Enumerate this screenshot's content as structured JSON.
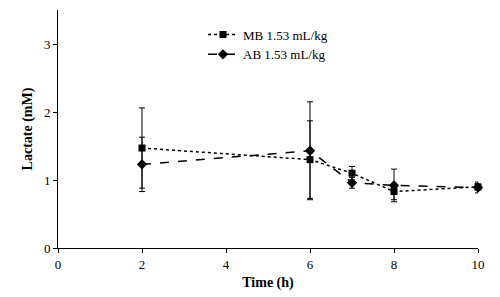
{
  "chart_data": {
    "type": "line",
    "x_label": "Time (h)",
    "y_label": "Lactate (mM)",
    "x": [
      2,
      6,
      7,
      8,
      10
    ],
    "series": [
      {
        "name": "MB 1.53 mL/kg",
        "color": "#000000",
        "marker": "square",
        "line_style": "dot",
        "values": [
          1.47,
          1.3,
          1.1,
          0.83,
          0.9
        ],
        "errors": [
          0.59,
          0.57,
          0.1,
          0.12,
          0.05
        ]
      },
      {
        "name": "AB 1.53 mL/kg",
        "color": "#000000",
        "marker": "diamond",
        "line_style": "dash",
        "values": [
          1.23,
          1.43,
          0.96,
          0.92,
          0.89
        ],
        "errors": [
          0.4,
          0.72,
          0.08,
          0.24,
          0.08
        ]
      }
    ],
    "xlim": [
      0,
      10
    ],
    "xticks": [
      0,
      2,
      4,
      6,
      8,
      10
    ],
    "ylim": [
      0,
      3.5
    ],
    "yticks": [
      0,
      1,
      2,
      3
    ],
    "grid": false,
    "legend": "upper center"
  }
}
